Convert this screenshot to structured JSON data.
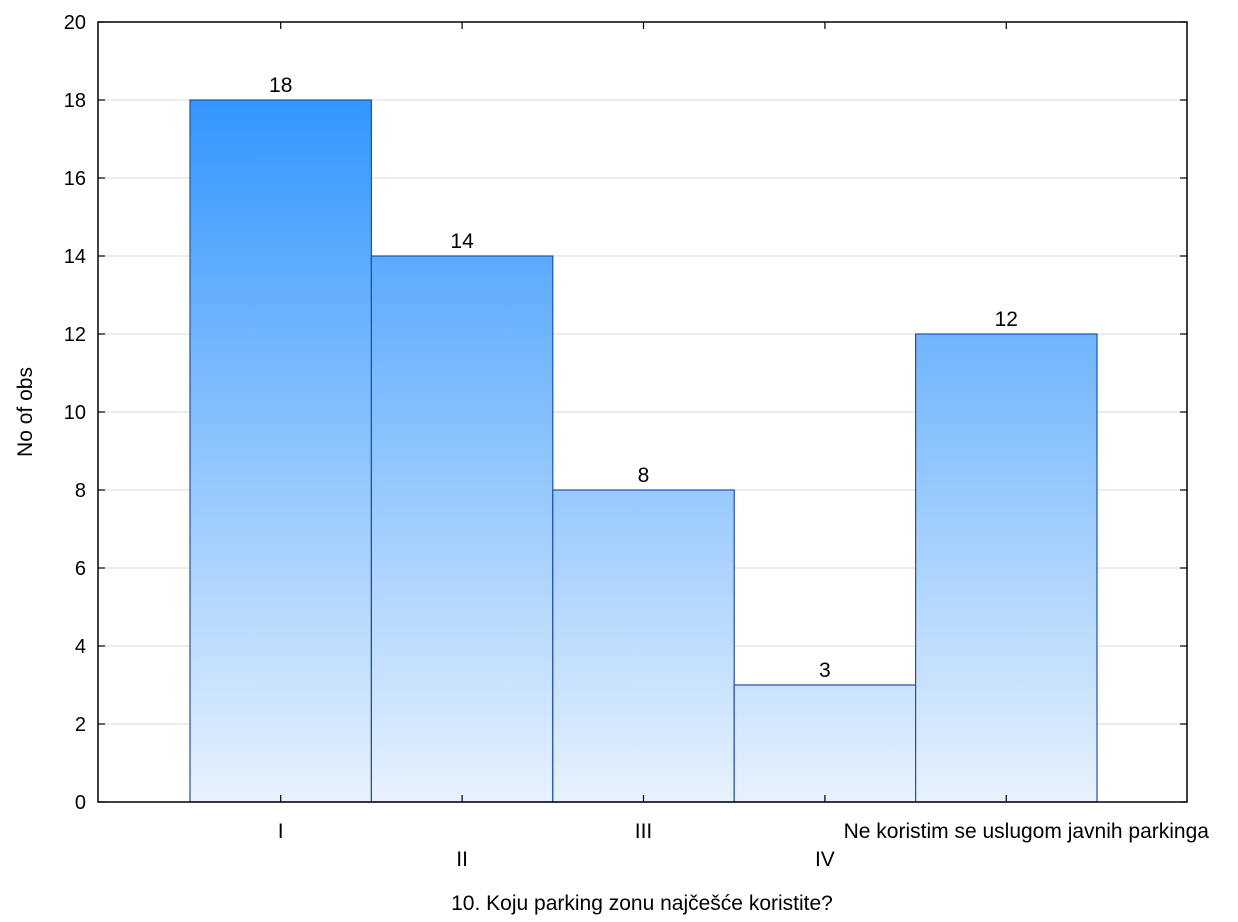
{
  "chart_data": {
    "type": "bar",
    "categories": [
      "I",
      "II",
      "III",
      "IV",
      "Ne koristim se uslugom javnih parkinga"
    ],
    "values": [
      18,
      14,
      8,
      3,
      12
    ],
    "xlabel": "10. Koju parking zonu najčešće koristite?",
    "ylabel": "No of obs",
    "ylim": [
      0,
      20
    ],
    "yticks": [
      0,
      2,
      4,
      6,
      8,
      10,
      12,
      14,
      16,
      18,
      20
    ],
    "grid": true,
    "data_labels": true,
    "colors": {
      "bar_top": "#1e8cff",
      "bar_bottom": "#e8f2fd",
      "bar_stroke": "#1f4fb4",
      "grid": "#d8d8d8",
      "axis": "#000000"
    }
  }
}
